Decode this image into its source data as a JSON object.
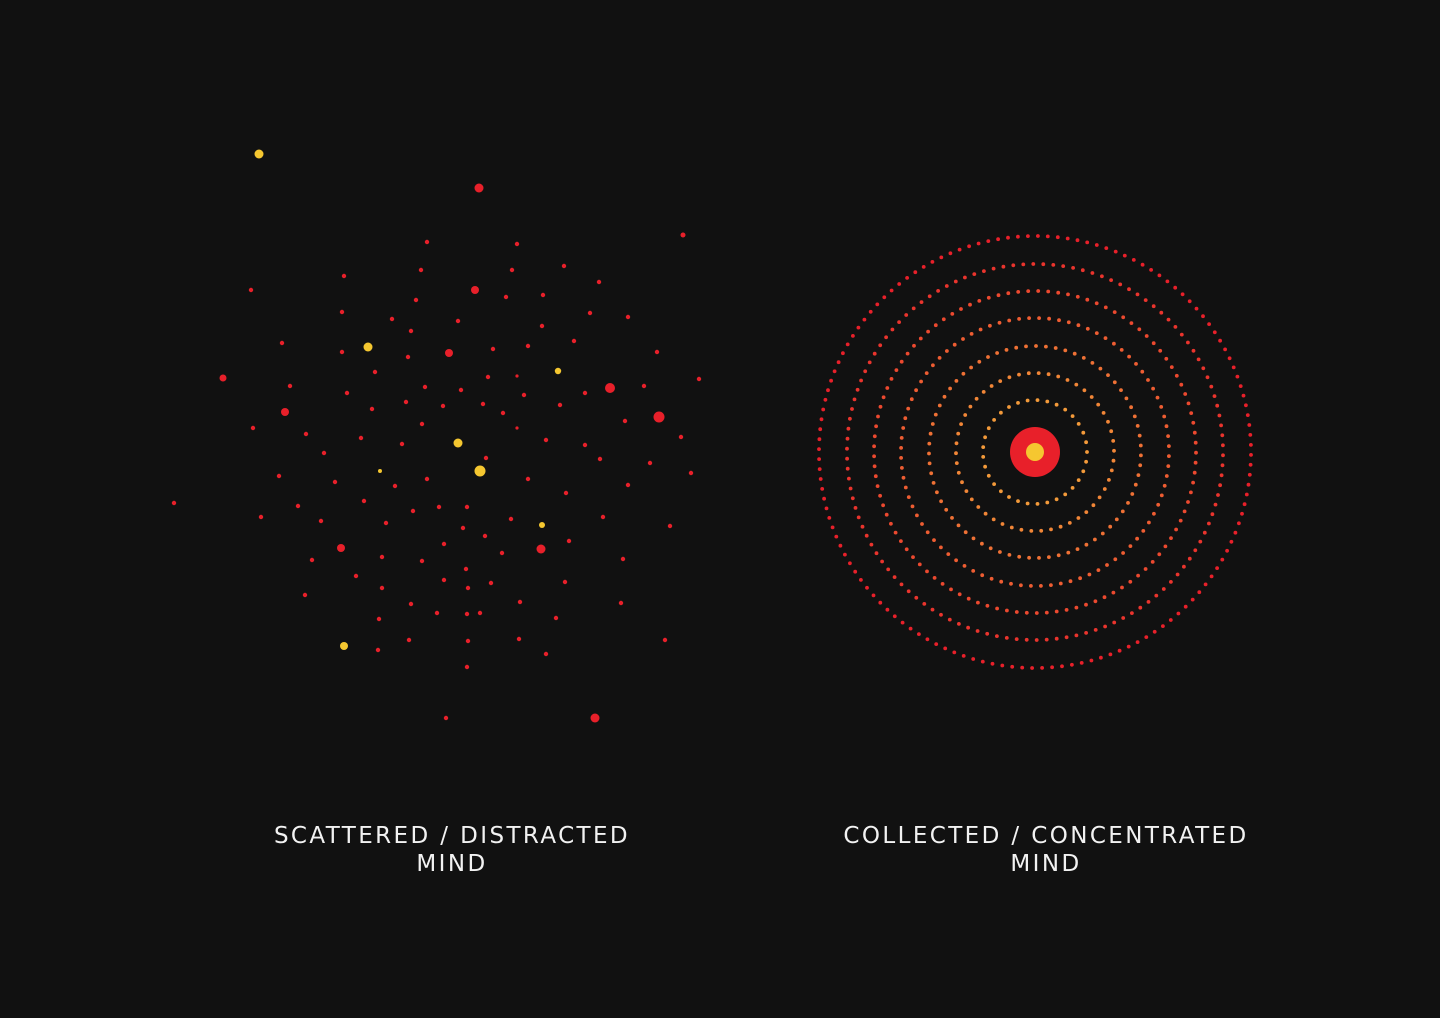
{
  "colors": {
    "background": "#111111",
    "red": "#e8202a",
    "yellow": "#f5c730",
    "orange": "#f39a3a",
    "text": "#f2f2f2"
  },
  "left_panel": {
    "caption_line1": "SCATTERED / DISTRACTED",
    "caption_line2": "MIND"
  },
  "right_panel": {
    "caption_line1": "COLLECTED / CONCENTRATED",
    "caption_line2": "MIND"
  }
}
